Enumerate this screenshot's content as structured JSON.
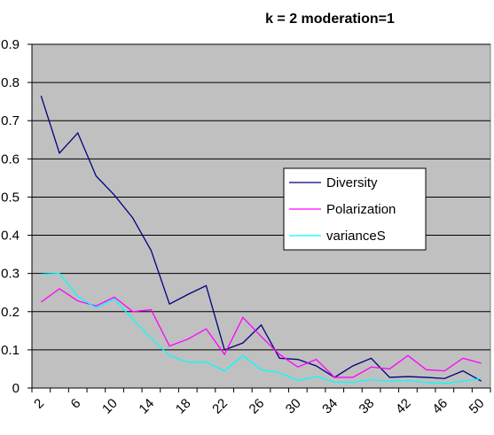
{
  "chart_data": {
    "type": "line",
    "title": "k = 2  moderation=1",
    "categories": [
      "2",
      null,
      "6",
      null,
      "10",
      null,
      "14",
      null,
      "18",
      null,
      "22",
      null,
      "26",
      null,
      "30",
      null,
      "34",
      null,
      "38",
      null,
      "42",
      null,
      "46",
      null,
      "50"
    ],
    "series": [
      {
        "name": "Diversity",
        "color": "#000080",
        "values": [
          0.765,
          0.615,
          0.668,
          0.555,
          0.505,
          0.445,
          0.36,
          0.22,
          0.245,
          0.268,
          0.1,
          0.118,
          0.165,
          0.078,
          0.075,
          0.058,
          0.028,
          0.058,
          0.078,
          0.028,
          0.03,
          0.028,
          0.025,
          0.045,
          0.018
        ]
      },
      {
        "name": "Polarization",
        "color": "#ff00ff",
        "values": [
          0.225,
          0.26,
          0.228,
          0.215,
          0.238,
          0.2,
          0.205,
          0.11,
          0.128,
          0.155,
          0.088,
          0.185,
          0.135,
          0.088,
          0.055,
          0.075,
          0.028,
          0.028,
          0.055,
          0.05,
          0.085,
          0.048,
          0.045,
          0.078,
          0.065
        ]
      },
      {
        "name": "varianceS",
        "color": "#00ffff",
        "values": [
          0.298,
          0.3,
          0.24,
          0.21,
          0.233,
          0.18,
          0.13,
          0.085,
          0.068,
          0.068,
          0.045,
          0.085,
          0.048,
          0.04,
          0.02,
          0.03,
          0.015,
          0.015,
          0.022,
          0.018,
          0.02,
          0.015,
          0.012,
          0.018,
          0.025
        ]
      }
    ],
    "ylim": [
      0,
      0.9
    ],
    "yticks": [
      0,
      0.1,
      0.2,
      0.3,
      0.4,
      0.5,
      0.6,
      0.7,
      0.8,
      0.9
    ],
    "grid": true,
    "legend": "right"
  }
}
